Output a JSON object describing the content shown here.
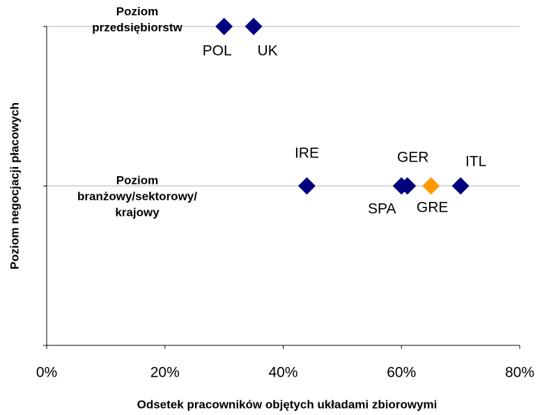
{
  "chart_data": {
    "type": "scatter",
    "x_label": "Odsetek pracowników objętych układami zbiorowymi",
    "y_label": "Poziom negocjacji płacowych",
    "xlim": [
      0,
      80
    ],
    "xticks": [
      {
        "value": 0,
        "label": "0%"
      },
      {
        "value": 20,
        "label": "20%"
      },
      {
        "value": 40,
        "label": "40%"
      },
      {
        "value": 60,
        "label": "60%"
      },
      {
        "value": 80,
        "label": "80%"
      }
    ],
    "ylim": [
      0,
      2
    ],
    "yticks": [
      {
        "value": 0,
        "label": null
      },
      {
        "value": 1,
        "label": "Poziom\nbranżowy/sektorowy/\nkrajowy"
      },
      {
        "value": 2,
        "label": "Poziom\nprzedsiębiorstw"
      }
    ],
    "grid": true,
    "x": [
      30,
      35,
      44,
      60,
      61,
      65,
      70
    ],
    "y": [
      2,
      2,
      1,
      1,
      1,
      1,
      1
    ],
    "point_labels": [
      "POL",
      "UK",
      "IRE",
      "SPA",
      "GER",
      "GRE",
      "ITL"
    ],
    "colors": [
      "#00007f",
      "#00007f",
      "#00007f",
      "#00007f",
      "#00007f",
      "#ff9900",
      "#00007f"
    ]
  }
}
